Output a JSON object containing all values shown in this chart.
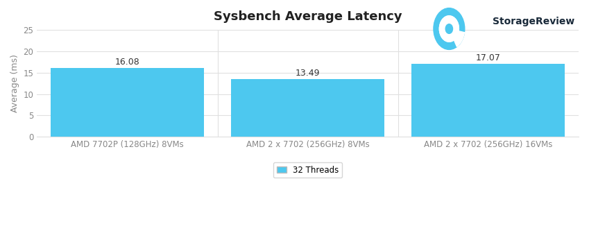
{
  "title": "Sysbench Average Latency",
  "ylabel": "Average (ms)",
  "categories": [
    "AMD 7702P (128GHz) 8VMs",
    "AMD 2 x 7702 (256GHz) 8VMs",
    "AMD 2 x 7702 (256GHz) 16VMs"
  ],
  "values": [
    16.08,
    13.49,
    17.07
  ],
  "bar_color": "#4DC8EF",
  "ylim": [
    0,
    25
  ],
  "yticks": [
    0,
    5,
    10,
    15,
    20,
    25
  ],
  "legend_label": "32 Threads",
  "background_color": "#ffffff",
  "plot_bg_color": "#ffffff",
  "grid_color": "#e0e0e0",
  "title_fontsize": 13,
  "label_fontsize": 9,
  "tick_fontsize": 8.5,
  "value_label_fontsize": 9,
  "logo_text": "StorageReview",
  "logo_text_color": "#1a2a3a",
  "logo_icon_color": "#4DC8EF"
}
